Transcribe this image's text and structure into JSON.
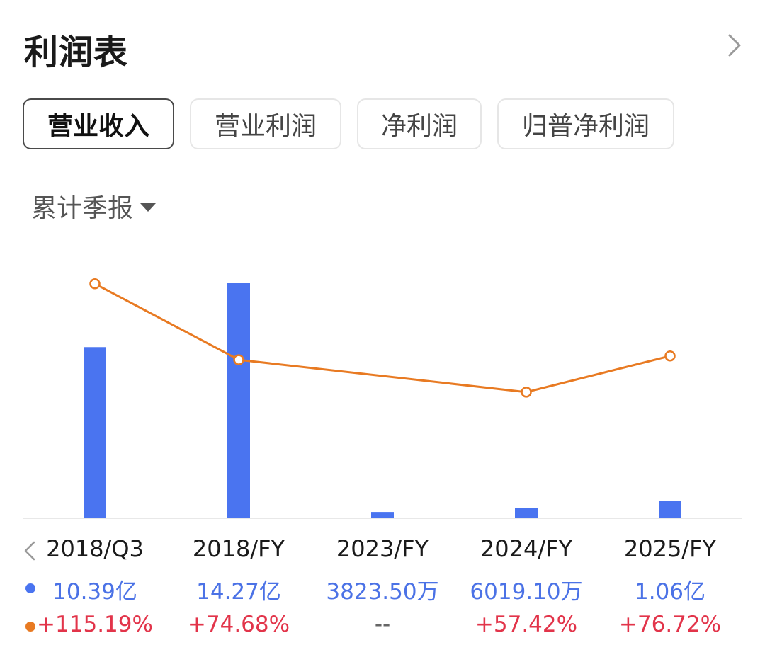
{
  "header": {
    "title": "利润表"
  },
  "tabs": [
    {
      "label": "营业收入",
      "active": true
    },
    {
      "label": "营业利润",
      "active": false
    },
    {
      "label": "净利润",
      "active": false
    },
    {
      "label": "归普净利润",
      "active": false
    }
  ],
  "period_selector": {
    "label": "累计季报"
  },
  "colors": {
    "bar": "#4a74f0",
    "line": "#e87a22",
    "value_text": "#4b72e6",
    "growth_text": "#e2344a"
  },
  "chart_data": {
    "type": "bar",
    "categories": [
      "2018/Q3",
      "2018/FY",
      "2023/FY",
      "2024/FY",
      "2025/FY"
    ],
    "series": [
      {
        "type": "bar",
        "values": [
          10.39,
          14.27,
          0.38235,
          0.60191,
          1.06
        ]
      },
      {
        "type": "line",
        "values": [
          115.19,
          74.68,
          null,
          57.42,
          76.72
        ]
      }
    ],
    "value_labels": [
      "10.39亿",
      "14.27亿",
      "3823.50万",
      "6019.10万",
      "1.06亿"
    ],
    "growth_labels": [
      "+115.19%",
      "+74.68%",
      "--",
      "+57.42%",
      "+76.72%"
    ],
    "ylim_bar": [
      0,
      14.27
    ],
    "grid": false,
    "legend": "bottom-left"
  }
}
